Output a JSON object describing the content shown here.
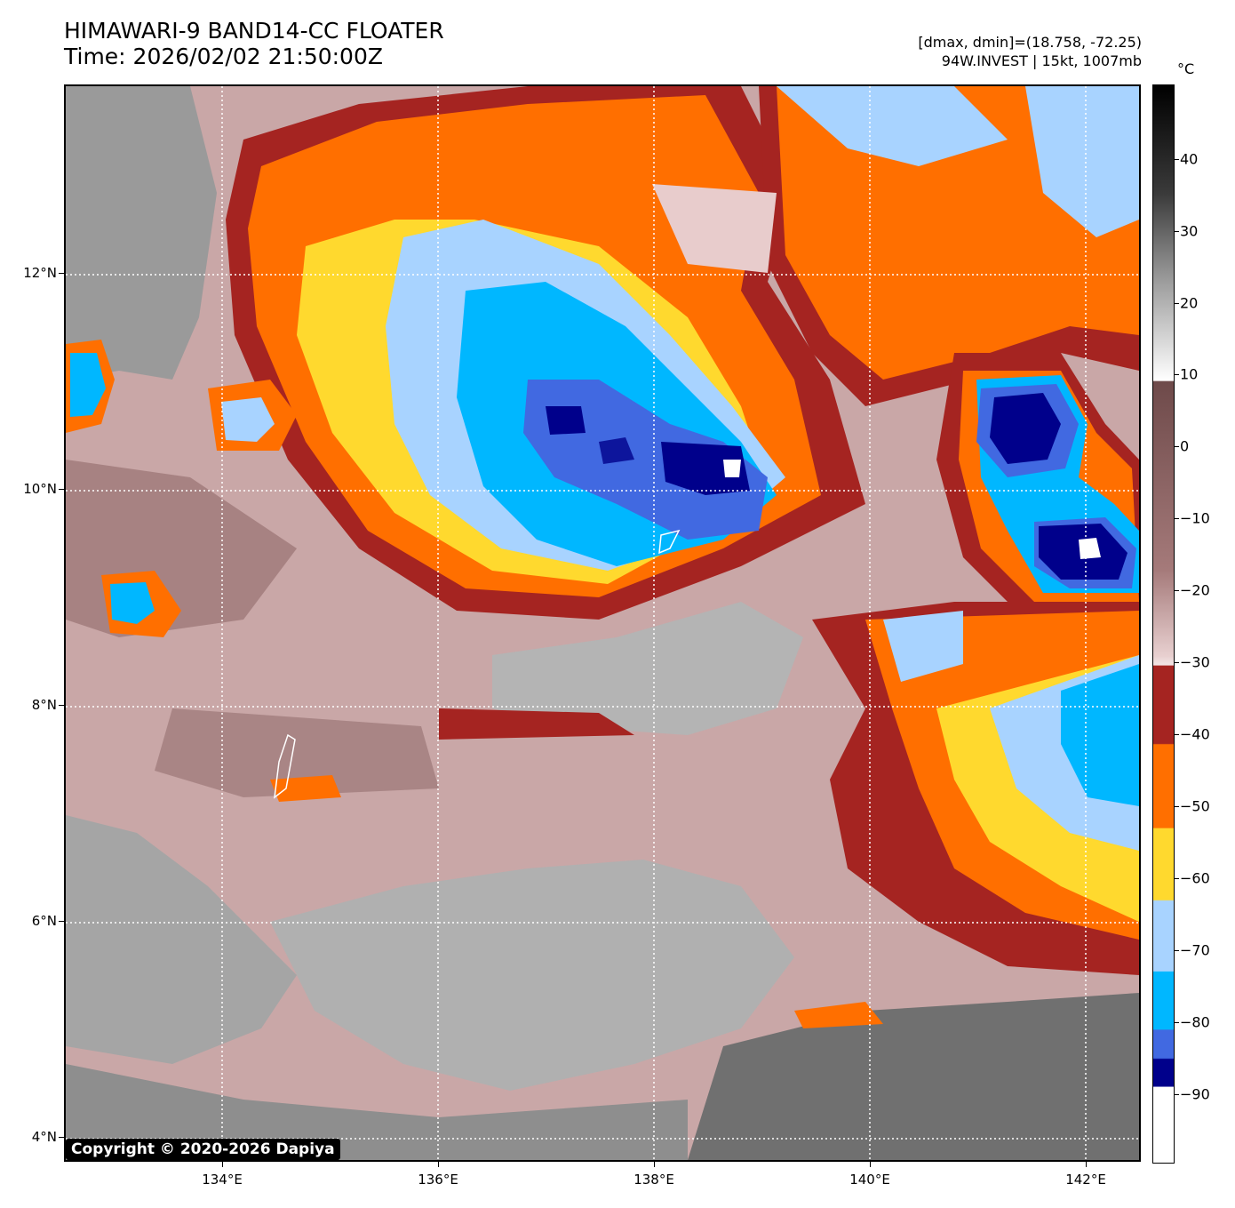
{
  "header": {
    "title_line1": "HIMAWARI-9 BAND14-CC FLOATER",
    "title_line2": "Time: 2026/02/02 21:50:00Z",
    "range_text": "[dmax, dmin]=(18.758, -72.25)",
    "storm_text": "94W.INVEST | 15kt, 1007mb"
  },
  "map": {
    "lat_labels": [
      "12°N",
      "10°N",
      "8°N",
      "6°N",
      "4°N"
    ],
    "lon_labels": [
      "134°E",
      "136°E",
      "138°E",
      "140°E",
      "142°E"
    ],
    "copyright": "Copyright © 2020-2026 Dapiya"
  },
  "colorbar": {
    "unit": "°C",
    "ticks": [
      "40",
      "30",
      "20",
      "10",
      "0",
      "−10",
      "−20",
      "−30",
      "−40",
      "−50",
      "−60",
      "−70",
      "−80",
      "−90"
    ],
    "colors": {
      "red": "#a52421",
      "orange": "#ff6f00",
      "yellow": "#ffd92e",
      "light_blue": "#a8d3ff",
      "cyan": "#00b7ff",
      "royal_blue": "#4169e1",
      "navy": "#00008b",
      "white": "#ffffff"
    }
  }
}
